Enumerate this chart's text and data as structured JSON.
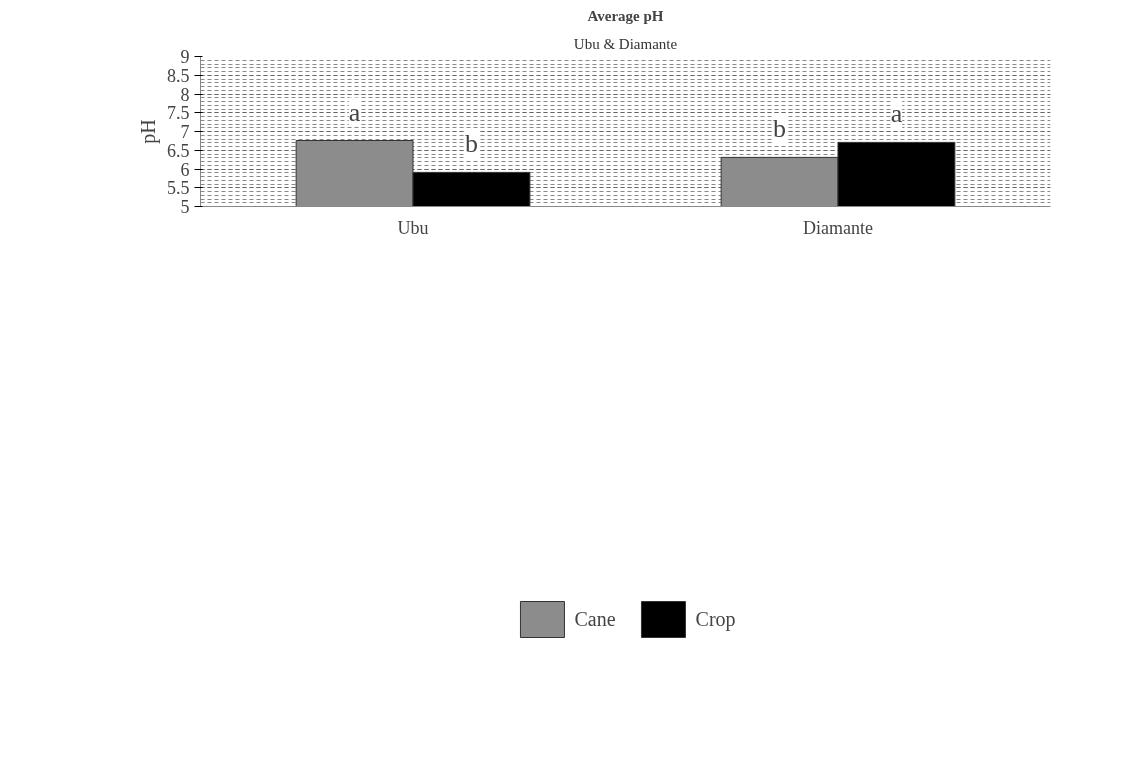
{
  "chart_data": {
    "type": "bar",
    "title": "Average pH",
    "subtitle": "Ubu & Diamante",
    "ylabel": "pH",
    "categories": [
      "Ubu",
      "Diamante"
    ],
    "series": [
      {
        "name": "Cane",
        "color": "#8c8c8c",
        "values": [
          6.76,
          6.31
        ]
      },
      {
        "name": "Crop",
        "color": "#000000",
        "values": [
          5.91,
          6.71
        ]
      }
    ],
    "ylim": [
      5,
      9
    ],
    "yticks": [
      5,
      5.5,
      6,
      6.5,
      7,
      7.5,
      8,
      8.5,
      9
    ],
    "annotations": [
      "a",
      "b",
      "b",
      "a"
    ],
    "grid": true,
    "legend": "bottom"
  }
}
